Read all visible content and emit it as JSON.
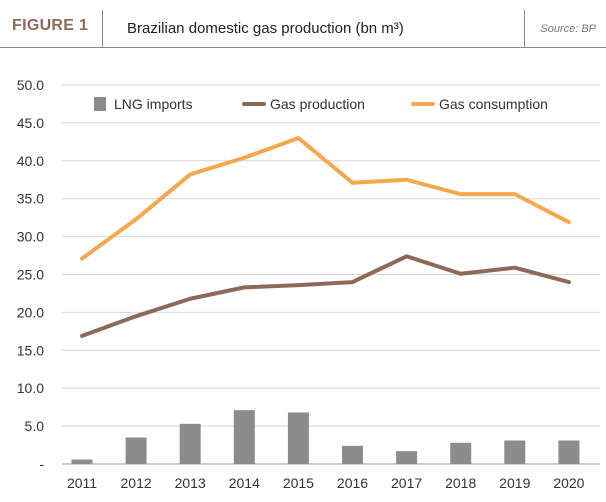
{
  "header": {
    "figure_label": "FIGURE 1",
    "title": "Brazilian domestic gas production (bn m³)",
    "source": "Source: BP"
  },
  "chart_data": {
    "type": "bar+line",
    "title": "Brazilian domestic gas production (bn m³)",
    "categories": [
      "2011",
      "2012",
      "2013",
      "2014",
      "2015",
      "2016",
      "2017",
      "2018",
      "2019",
      "2020"
    ],
    "y_tick_labels": [
      "-",
      "5.0",
      "10.0",
      "15.0",
      "20.0",
      "25.0",
      "30.0",
      "35.0",
      "40.0",
      "45.0",
      "50.0"
    ],
    "ylim": [
      0,
      50
    ],
    "grid": "horizontal",
    "legend_position": "top",
    "series": [
      {
        "name": "LNG imports",
        "kind": "bar",
        "color": "#8c8c8c",
        "values": [
          0.6,
          3.5,
          5.3,
          7.1,
          6.8,
          2.4,
          1.7,
          2.8,
          3.1,
          3.1
        ]
      },
      {
        "name": "Gas production",
        "kind": "line",
        "color": "#8b6a58",
        "values": [
          16.9,
          19.5,
          21.8,
          23.3,
          23.6,
          24.0,
          27.4,
          25.1,
          25.9,
          24.0
        ]
      },
      {
        "name": "Gas consumption",
        "kind": "line",
        "color": "#f5a94f",
        "values": [
          27.1,
          32.3,
          38.2,
          40.4,
          43.0,
          37.1,
          37.5,
          35.6,
          35.6,
          31.9
        ]
      }
    ]
  }
}
